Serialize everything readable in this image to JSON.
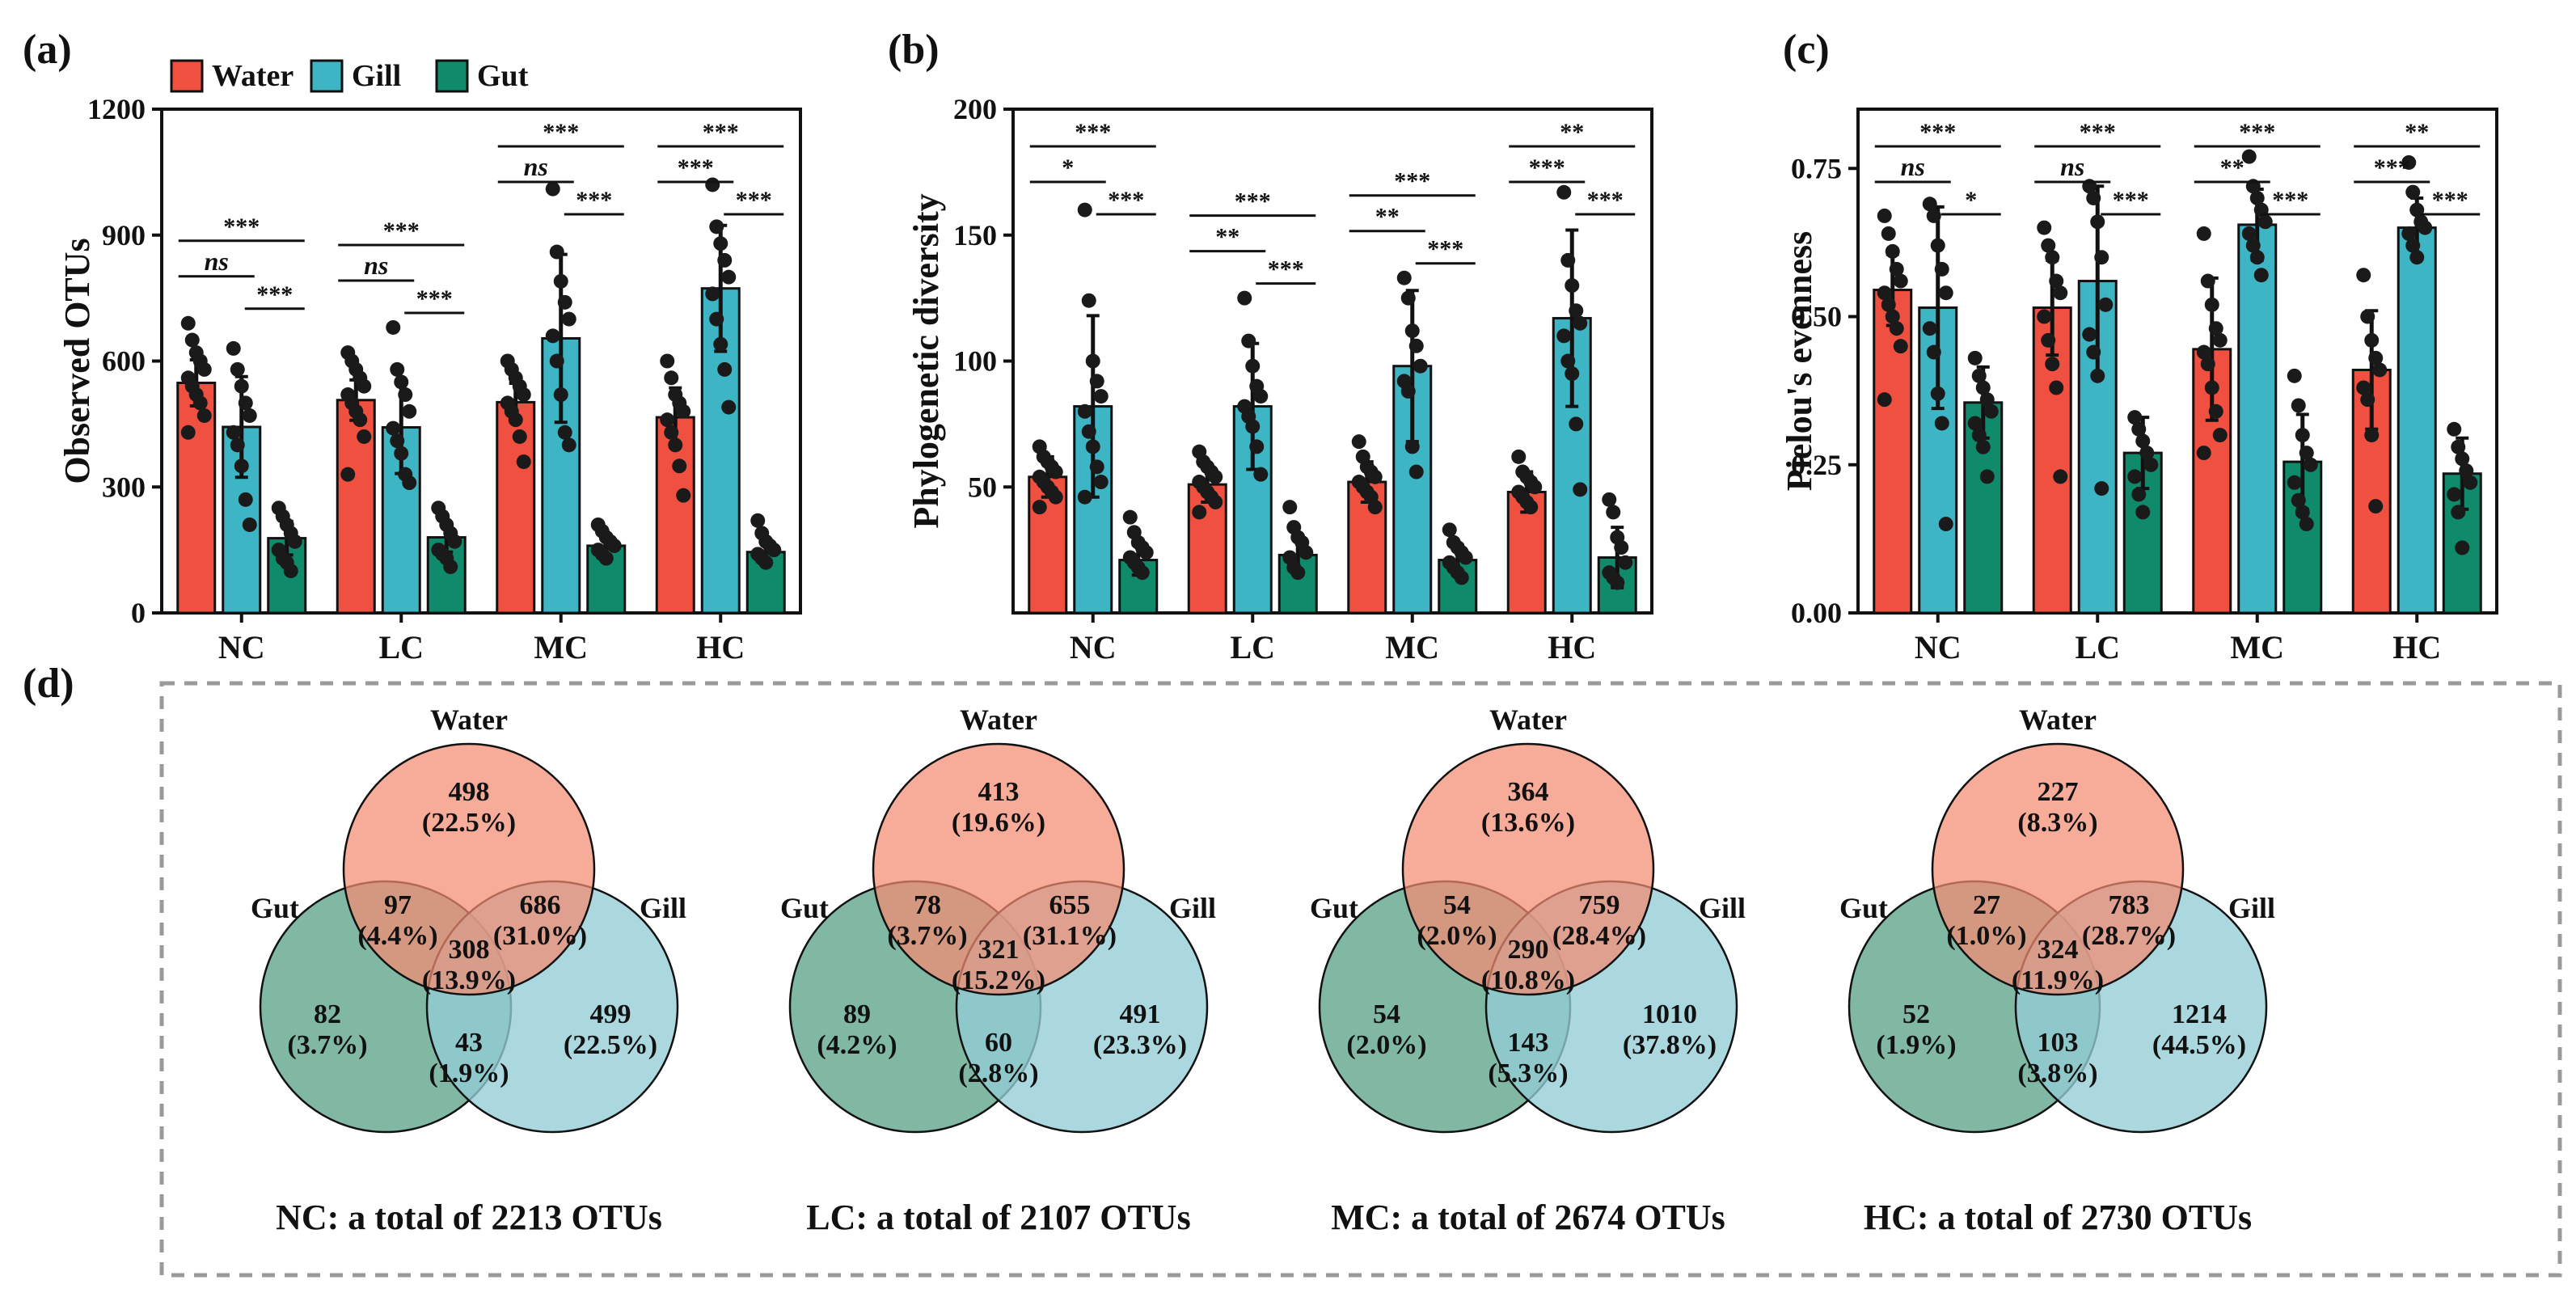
{
  "colors": {
    "Water": "#f0503f",
    "Gill": "#3eb5c4",
    "Gut": "#0f8a6a"
  },
  "legend": [
    "Water",
    "Gill",
    "Gut"
  ],
  "chart_data": [
    {
      "id": "a",
      "panel": "(a)",
      "type": "bar",
      "ylabel": "Observed OTUs",
      "ylim": [
        0,
        1200
      ],
      "yticks": [
        0,
        300,
        600,
        900,
        1200
      ],
      "categories": [
        "NC",
        "LC",
        "MC",
        "HC"
      ],
      "series": [
        {
          "name": "Water",
          "values": [
            548,
            507,
            502,
            466
          ],
          "err": [
            55,
            48,
            45,
            70
          ]
        },
        {
          "name": "Gill",
          "values": [
            443,
            442,
            654,
            773
          ],
          "err": [
            120,
            110,
            200,
            150
          ]
        },
        {
          "name": "Gut",
          "values": [
            178,
            180,
            160,
            145
          ],
          "err": [
            40,
            35,
            25,
            30
          ]
        }
      ],
      "points": [
        [
          [
            690,
            650,
            620,
            600,
            580,
            560,
            540,
            520,
            500,
            470,
            430
          ],
          [
            630,
            580,
            540,
            500,
            470,
            430,
            400,
            350,
            270,
            210
          ],
          [
            250,
            230,
            210,
            190,
            170,
            150,
            130,
            120,
            100
          ]
        ],
        [
          [
            620,
            600,
            580,
            560,
            540,
            520,
            500,
            480,
            460,
            420,
            330
          ],
          [
            680,
            580,
            550,
            520,
            480,
            440,
            410,
            380,
            330,
            310
          ],
          [
            250,
            230,
            210,
            190,
            170,
            150,
            140,
            130,
            110
          ]
        ],
        [
          [
            600,
            580,
            560,
            540,
            520,
            500,
            480,
            460,
            420,
            360
          ],
          [
            1010,
            860,
            790,
            740,
            700,
            660,
            600,
            520,
            430,
            400
          ],
          [
            210,
            195,
            180,
            170,
            160,
            150,
            140,
            130
          ]
        ],
        [
          [
            600,
            560,
            520,
            500,
            480,
            460,
            430,
            400,
            350,
            280
          ],
          [
            1020,
            920,
            880,
            840,
            800,
            760,
            700,
            640,
            580,
            490
          ],
          [
            220,
            190,
            170,
            160,
            150,
            140,
            130,
            120
          ]
        ]
      ],
      "significance": [
        [
          {
            "pair": "Water-Gut",
            "label": "***"
          },
          {
            "pair": "Water-Gill",
            "label": "ns"
          },
          {
            "pair": "Gill-Gut",
            "label": "***"
          }
        ],
        [
          {
            "pair": "Water-Gut",
            "label": "***"
          },
          {
            "pair": "Water-Gill",
            "label": "ns"
          },
          {
            "pair": "Gill-Gut",
            "label": "***"
          }
        ],
        [
          {
            "pair": "Water-Gut",
            "label": "***"
          },
          {
            "pair": "Water-Gill",
            "label": "ns"
          },
          {
            "pair": "Gill-Gut",
            "label": "***"
          }
        ],
        [
          {
            "pair": "Water-Gut",
            "label": "***"
          },
          {
            "pair": "Water-Gill",
            "label": "***"
          },
          {
            "pair": "Gill-Gut",
            "label": "***"
          }
        ]
      ]
    },
    {
      "id": "b",
      "panel": "(b)",
      "type": "bar",
      "ylabel": "Phylogenetic diversity",
      "ylim": [
        0,
        200
      ],
      "yticks": [
        50,
        100,
        150,
        200
      ],
      "categories": [
        "NC",
        "LC",
        "MC",
        "HC"
      ],
      "series": [
        {
          "name": "Water",
          "values": [
            54,
            51,
            52,
            48
          ],
          "err": [
            8,
            7,
            8,
            8
          ]
        },
        {
          "name": "Gill",
          "values": [
            82,
            82,
            98,
            117
          ],
          "err": [
            36,
            25,
            30,
            35
          ]
        },
        {
          "name": "Gut",
          "values": [
            21,
            23,
            21,
            22
          ],
          "err": [
            6,
            7,
            6,
            12
          ]
        }
      ],
      "points": [
        [
          [
            66,
            62,
            60,
            58,
            56,
            54,
            52,
            50,
            48,
            46,
            42
          ],
          [
            160,
            124,
            100,
            92,
            86,
            80,
            72,
            66,
            58,
            52,
            46
          ],
          [
            38,
            32,
            28,
            26,
            24,
            22,
            20,
            18,
            16
          ]
        ],
        [
          [
            64,
            60,
            58,
            56,
            54,
            52,
            50,
            48,
            46,
            44,
            40
          ],
          [
            125,
            108,
            98,
            90,
            86,
            82,
            78,
            74,
            66,
            55
          ],
          [
            42,
            34,
            30,
            28,
            24,
            22,
            18,
            16
          ]
        ],
        [
          [
            68,
            62,
            58,
            56,
            54,
            52,
            50,
            48,
            46,
            42
          ],
          [
            133,
            125,
            112,
            106,
            98,
            92,
            88,
            66,
            56
          ],
          [
            33,
            28,
            26,
            24,
            22,
            20,
            18,
            16,
            14
          ]
        ],
        [
          [
            62,
            56,
            54,
            52,
            50,
            48,
            46,
            44,
            42
          ],
          [
            167,
            140,
            130,
            120,
            115,
            110,
            100,
            95,
            75,
            49
          ],
          [
            45,
            40,
            30,
            26,
            20,
            16,
            14,
            12
          ]
        ]
      ],
      "significance": [
        [
          {
            "pair": "Water-Gut",
            "label": "***"
          },
          {
            "pair": "Water-Gill",
            "label": "*"
          },
          {
            "pair": "Gill-Gut",
            "label": "***"
          }
        ],
        [
          {
            "pair": "Water-Gut",
            "label": "***"
          },
          {
            "pair": "Water-Gill",
            "label": "**"
          },
          {
            "pair": "Gill-Gut",
            "label": "***"
          }
        ],
        [
          {
            "pair": "Water-Gut",
            "label": "***"
          },
          {
            "pair": "Water-Gill",
            "label": "**"
          },
          {
            "pair": "Gill-Gut",
            "label": "***"
          }
        ],
        [
          {
            "pair": "Water-Gut",
            "label": "**"
          },
          {
            "pair": "Water-Gill",
            "label": "***"
          },
          {
            "pair": "Gill-Gut",
            "label": "***"
          }
        ]
      ]
    },
    {
      "id": "c",
      "panel": "(c)",
      "type": "bar",
      "ylabel": "Pielou's evenness",
      "ylim": [
        0,
        0.85
      ],
      "yticks": [
        "0.00",
        "0.25",
        "0.50",
        "0.75"
      ],
      "categories": [
        "NC",
        "LC",
        "MC",
        "HC"
      ],
      "series": [
        {
          "name": "Water",
          "values": [
            0.545,
            0.515,
            0.445,
            0.41
          ],
          "err": [
            0.06,
            0.08,
            0.12,
            0.1
          ]
        },
        {
          "name": "Gill",
          "values": [
            0.515,
            0.56,
            0.655,
            0.65
          ],
          "err": [
            0.17,
            0.16,
            0.06,
            0.05
          ]
        },
        {
          "name": "Gut",
          "values": [
            0.355,
            0.27,
            0.255,
            0.235
          ],
          "err": [
            0.06,
            0.06,
            0.08,
            0.06
          ]
        }
      ],
      "points": [
        [
          [
            0.67,
            0.64,
            0.61,
            0.58,
            0.56,
            0.54,
            0.52,
            0.5,
            0.48,
            0.45,
            0.36
          ],
          [
            0.69,
            0.67,
            0.62,
            0.58,
            0.54,
            0.48,
            0.44,
            0.37,
            0.32,
            0.15
          ],
          [
            0.43,
            0.4,
            0.38,
            0.36,
            0.34,
            0.32,
            0.3,
            0.28,
            0.23
          ]
        ],
        [
          [
            0.65,
            0.62,
            0.6,
            0.56,
            0.54,
            0.5,
            0.46,
            0.42,
            0.38,
            0.23
          ],
          [
            0.72,
            0.7,
            0.66,
            0.6,
            0.52,
            0.47,
            0.44,
            0.4,
            0.21
          ],
          [
            0.33,
            0.31,
            0.29,
            0.27,
            0.25,
            0.23,
            0.2,
            0.17
          ]
        ],
        [
          [
            0.64,
            0.56,
            0.52,
            0.48,
            0.46,
            0.44,
            0.42,
            0.38,
            0.34,
            0.3,
            0.27
          ],
          [
            0.77,
            0.72,
            0.7,
            0.68,
            0.66,
            0.64,
            0.62,
            0.6,
            0.57
          ],
          [
            0.4,
            0.35,
            0.3,
            0.27,
            0.25,
            0.22,
            0.19,
            0.17,
            0.15
          ]
        ],
        [
          [
            0.57,
            0.5,
            0.46,
            0.43,
            0.41,
            0.38,
            0.36,
            0.3,
            0.18
          ],
          [
            0.76,
            0.71,
            0.68,
            0.66,
            0.65,
            0.64,
            0.62,
            0.6
          ],
          [
            0.31,
            0.28,
            0.26,
            0.24,
            0.22,
            0.2,
            0.17,
            0.11
          ]
        ]
      ],
      "significance": [
        [
          {
            "pair": "Water-Gut",
            "label": "***"
          },
          {
            "pair": "Water-Gill",
            "label": "ns"
          },
          {
            "pair": "Gill-Gut",
            "label": "*"
          }
        ],
        [
          {
            "pair": "Water-Gut",
            "label": "***"
          },
          {
            "pair": "Water-Gill",
            "label": "ns"
          },
          {
            "pair": "Gill-Gut",
            "label": "***"
          }
        ],
        [
          {
            "pair": "Water-Gut",
            "label": "***"
          },
          {
            "pair": "Water-Gill",
            "label": "**"
          },
          {
            "pair": "Gill-Gut",
            "label": "***"
          }
        ],
        [
          {
            "pair": "Water-Gut",
            "label": "**"
          },
          {
            "pair": "Water-Gill",
            "label": "***"
          },
          {
            "pair": "Gill-Gut",
            "label": "***"
          }
        ]
      ]
    }
  ],
  "venn": {
    "panel": "(d)",
    "labels": {
      "water": "Water",
      "gut": "Gut",
      "gill": "Gill"
    },
    "diagrams": [
      {
        "group": "NC",
        "caption": "NC: a total of 2213 OTUs",
        "water_only": [
          "498",
          "(22.5%)"
        ],
        "gut_only": [
          "82",
          "(3.7%)"
        ],
        "gill_only": [
          "499",
          "(22.5%)"
        ],
        "water_gut": [
          "97",
          "(4.4%)"
        ],
        "water_gill": [
          "686",
          "(31.0%)"
        ],
        "gut_gill": [
          "43",
          "(1.9%)"
        ],
        "all": [
          "308",
          "(13.9%)"
        ]
      },
      {
        "group": "LC",
        "caption": "LC: a total of 2107 OTUs",
        "water_only": [
          "413",
          "(19.6%)"
        ],
        "gut_only": [
          "89",
          "(4.2%)"
        ],
        "gill_only": [
          "491",
          "(23.3%)"
        ],
        "water_gut": [
          "78",
          "(3.7%)"
        ],
        "water_gill": [
          "655",
          "(31.1%)"
        ],
        "gut_gill": [
          "60",
          "(2.8%)"
        ],
        "all": [
          "321",
          "(15.2%)"
        ]
      },
      {
        "group": "MC",
        "caption": "MC: a total of 2674 OTUs",
        "water_only": [
          "364",
          "(13.6%)"
        ],
        "gut_only": [
          "54",
          "(2.0%)"
        ],
        "gill_only": [
          "1010",
          "(37.8%)"
        ],
        "water_gut": [
          "54",
          "(2.0%)"
        ],
        "water_gill": [
          "759",
          "(28.4%)"
        ],
        "gut_gill": [
          "143",
          "(5.3%)"
        ],
        "all": [
          "290",
          "(10.8%)"
        ]
      },
      {
        "group": "HC",
        "caption": "HC: a total of 2730 OTUs",
        "water_only": [
          "227",
          "(8.3%)"
        ],
        "gut_only": [
          "52",
          "(1.9%)"
        ],
        "gill_only": [
          "1214",
          "(44.5%)"
        ],
        "water_gut": [
          "27",
          "(1.0%)"
        ],
        "water_gill": [
          "783",
          "(28.7%)"
        ],
        "gut_gill": [
          "103",
          "(3.8%)"
        ],
        "all": [
          "324",
          "(11.9%)"
        ]
      }
    ],
    "colors": {
      "water": "#f48a72",
      "gut": "#6aab94",
      "gill": "#94cdd6"
    }
  }
}
